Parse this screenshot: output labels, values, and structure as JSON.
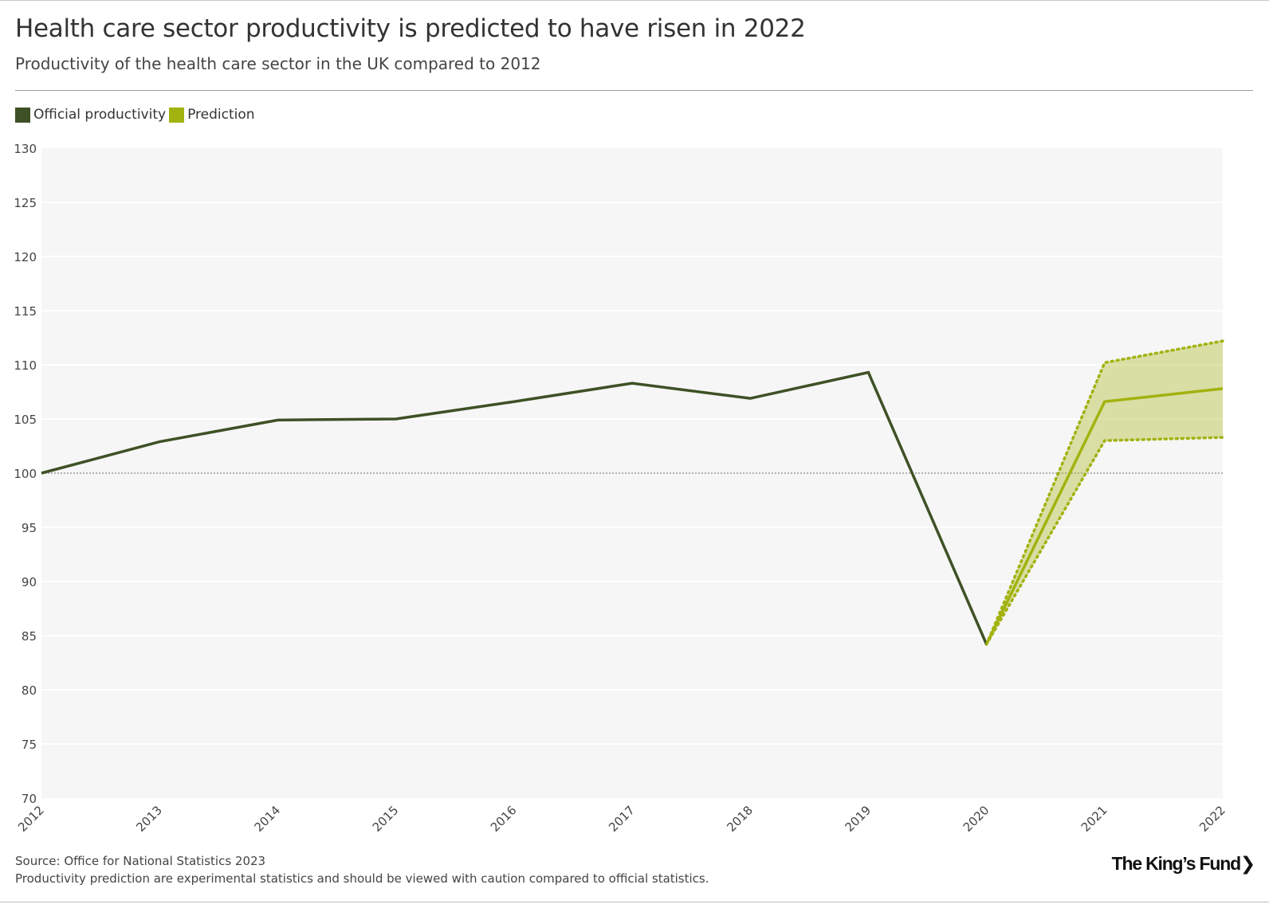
{
  "header": {
    "title": "Health care sector productivity is predicted to have risen in 2022",
    "subtitle": "Productivity of the health care sector in the UK compared to 2012"
  },
  "legend": [
    {
      "label": "Official productivity",
      "color": "#3e5126"
    },
    {
      "label": "Prediction",
      "color": "#a2b20f"
    }
  ],
  "footer": {
    "source": "Source: Office for National Statistics 2023",
    "note": "Productivity prediction are experimental statistics and should be viewed with caution compared to official statistics.",
    "logo": "The King's Fund"
  },
  "chart_data": {
    "type": "line",
    "title": "Health care sector productivity is predicted to have risen in 2022",
    "subtitle": "Productivity of the health care sector in the UK compared to 2012",
    "xlabel": "",
    "ylabel": "",
    "ylim": [
      70,
      130
    ],
    "yticks": [
      70,
      75,
      80,
      85,
      90,
      95,
      100,
      105,
      110,
      115,
      120,
      125,
      130
    ],
    "categories": [
      "2012",
      "2013",
      "2014",
      "2015",
      "2016",
      "2017",
      "2018",
      "2019",
      "2020",
      "2021",
      "2022"
    ],
    "reference_line": 100,
    "grid": true,
    "legend_position": "top-left",
    "series": [
      {
        "name": "Official productivity",
        "color": "#3e5126",
        "x": [
          "2012",
          "2013",
          "2014",
          "2015",
          "2016",
          "2017",
          "2018",
          "2019",
          "2020"
        ],
        "values": [
          100.0,
          102.9,
          104.9,
          105.0,
          106.6,
          108.3,
          106.9,
          109.3,
          84.2
        ]
      },
      {
        "name": "Prediction",
        "color": "#a2b20f",
        "x": [
          "2020",
          "2021",
          "2022"
        ],
        "values": [
          84.2,
          106.6,
          107.8
        ],
        "upper": [
          84.2,
          110.2,
          112.2
        ],
        "lower": [
          84.2,
          103.0,
          103.3
        ]
      }
    ]
  }
}
